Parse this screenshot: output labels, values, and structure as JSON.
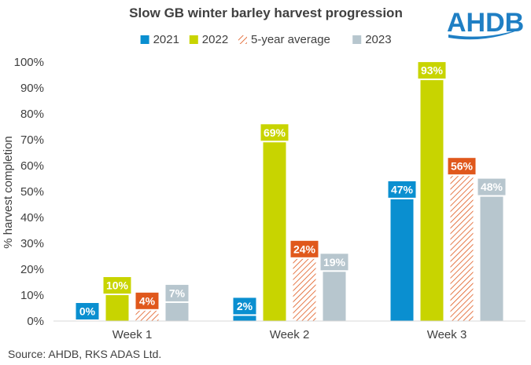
{
  "chart_data": {
    "type": "bar",
    "title": "Slow GB winter barley harvest progression",
    "ylabel": "% harvest completion",
    "categories": [
      "Week 1",
      "Week 2",
      "Week 3"
    ],
    "ylim": [
      0,
      100
    ],
    "yticks": [
      "0%",
      "10%",
      "20%",
      "30%",
      "40%",
      "50%",
      "60%",
      "70%",
      "80%",
      "90%",
      "100%"
    ],
    "grid": false,
    "legend_position": "top",
    "series": [
      {
        "name": "2021",
        "values": [
          0,
          2,
          47
        ],
        "labels": [
          "0%",
          "2%",
          "47%"
        ],
        "color": "#0a8fd0",
        "pattern": "solid"
      },
      {
        "name": "2022",
        "values": [
          10,
          69,
          93
        ],
        "labels": [
          "10%",
          "69%",
          "93%"
        ],
        "color": "#c8d400",
        "pattern": "solid"
      },
      {
        "name": "5-year average",
        "values": [
          4,
          24,
          56
        ],
        "labels": [
          "4%",
          "24%",
          "56%"
        ],
        "color": "#e0581c",
        "pattern": "hatched"
      },
      {
        "name": "2023",
        "values": [
          7,
          19,
          48
        ],
        "labels": [
          "7%",
          "19%",
          "48%"
        ],
        "color": "#b7c6ce",
        "pattern": "solid"
      }
    ]
  },
  "source": "Source: AHDB, RKS ADAS Ltd.",
  "logo": {
    "text": "AHDB",
    "color": "#1f7fc4"
  }
}
